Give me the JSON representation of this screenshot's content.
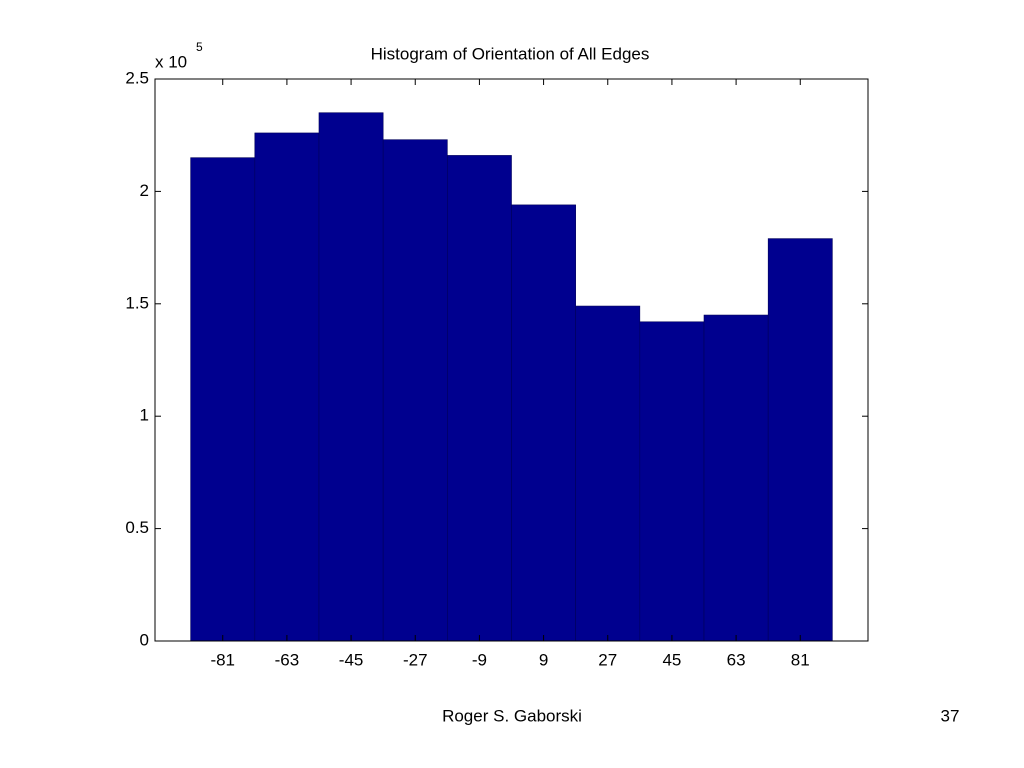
{
  "chart_data": {
    "type": "histogram",
    "title": "Histogram of Orientation of All Edges",
    "y_scale_label": {
      "base": "x 10",
      "exponent": "5"
    },
    "bins": [
      -90,
      -72,
      -54,
      -36,
      -18,
      0,
      18,
      36,
      54,
      72,
      90
    ],
    "values": [
      2.15,
      2.26,
      2.35,
      2.23,
      2.16,
      1.94,
      1.49,
      1.42,
      1.45,
      1.79
    ],
    "color": "#00008f",
    "xlim": [
      -100,
      100
    ],
    "xticks": [
      -81,
      -63,
      -45,
      -27,
      -9,
      9,
      27,
      45,
      63,
      81
    ],
    "ylim": [
      0,
      2.5
    ],
    "yticks": [
      0,
      0.5,
      1,
      1.5,
      2,
      2.5
    ],
    "grid": false
  },
  "footer": {
    "author": "Roger S. Gaborski",
    "page": "37"
  }
}
